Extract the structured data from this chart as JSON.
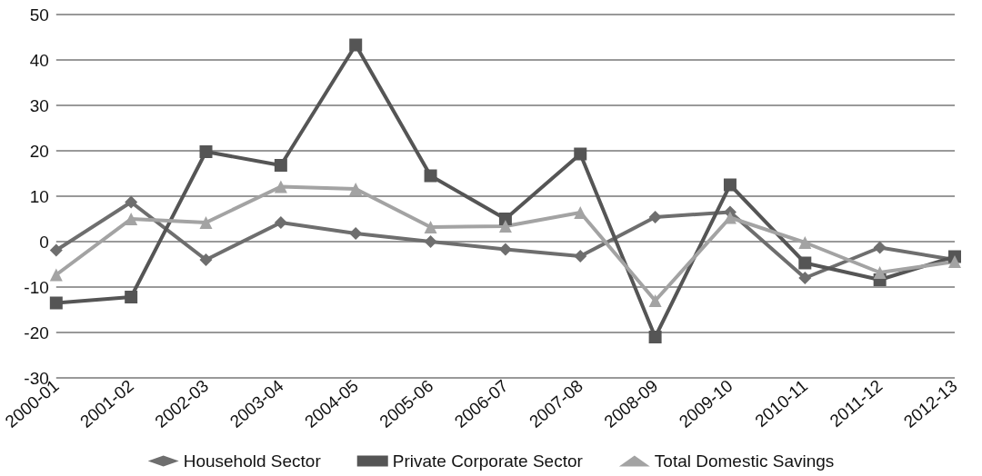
{
  "chart_data": {
    "type": "line",
    "categories": [
      "2000-01",
      "2001-02",
      "2002-03",
      "2003-04",
      "2004-05",
      "2005-06",
      "2006-07",
      "2007-08",
      "2008-09",
      "2009-10",
      "2010-11",
      "2011-12",
      "2012-13"
    ],
    "series": [
      {
        "name": "Household Sector",
        "color": "#6e6e6e",
        "marker": "diamond",
        "values": [
          -1.9,
          8.7,
          -4,
          4.2,
          1.8,
          0,
          -1.7,
          -3.2,
          5.4,
          6.5,
          -8,
          -1.3,
          -4
        ]
      },
      {
        "name": "Private Corporate Sector",
        "color": "#555555",
        "marker": "square",
        "values": [
          -13.5,
          -12.2,
          19.8,
          16.8,
          43.3,
          14.5,
          5,
          19.3,
          -21,
          12.5,
          -4.7,
          -8.4,
          -3.3
        ]
      },
      {
        "name": "Total Domestic Savings",
        "color": "#a3a3a3",
        "marker": "triangle",
        "values": [
          -7.3,
          5,
          4.2,
          12.1,
          11.6,
          3.2,
          3.4,
          6.4,
          -13,
          5.3,
          -0.2,
          -6.8,
          -4.4
        ]
      }
    ],
    "ylim": [
      -30,
      50
    ],
    "yticks": [
      -30,
      -20,
      -10,
      0,
      10,
      20,
      30,
      40,
      50
    ],
    "grid": "y",
    "legend": "bottom",
    "line_style": "solid"
  }
}
